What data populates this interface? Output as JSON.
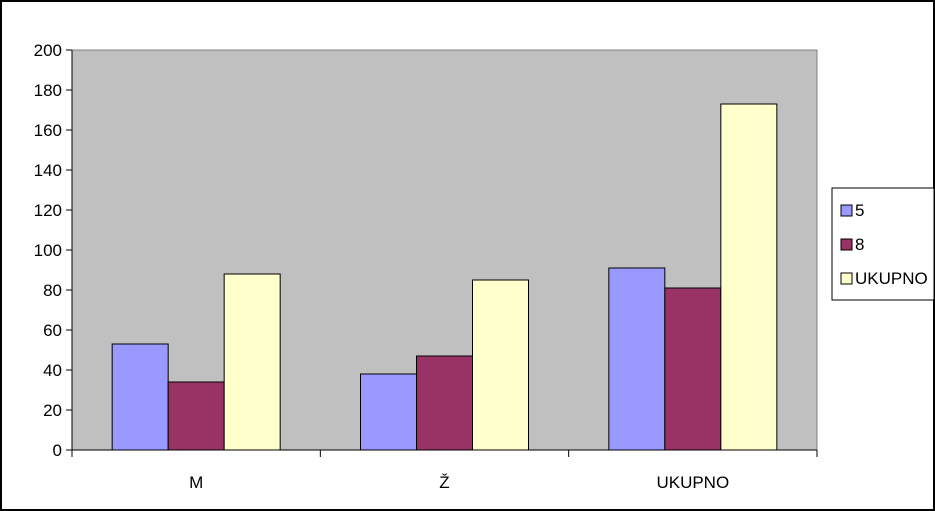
{
  "chart_data": {
    "type": "bar",
    "title": "",
    "xlabel": "",
    "ylabel": "",
    "categories": [
      "M",
      "Ž",
      "UKUPNO"
    ],
    "series": [
      {
        "name": "5",
        "values": [
          53,
          38,
          91
        ],
        "color": "#9999ff"
      },
      {
        "name": "8",
        "values": [
          34,
          47,
          81
        ],
        "color": "#993366"
      },
      {
        "name": "UKUPNO",
        "values": [
          88,
          85,
          173
        ],
        "color": "#ffffcc"
      }
    ],
    "ylim": [
      0,
      200
    ],
    "yticks": [
      0,
      20,
      40,
      60,
      80,
      100,
      120,
      140,
      160,
      180,
      200
    ],
    "grid": false,
    "legend_position": "right",
    "plot_background": "#c0c0c0",
    "background": "#ffffff"
  }
}
